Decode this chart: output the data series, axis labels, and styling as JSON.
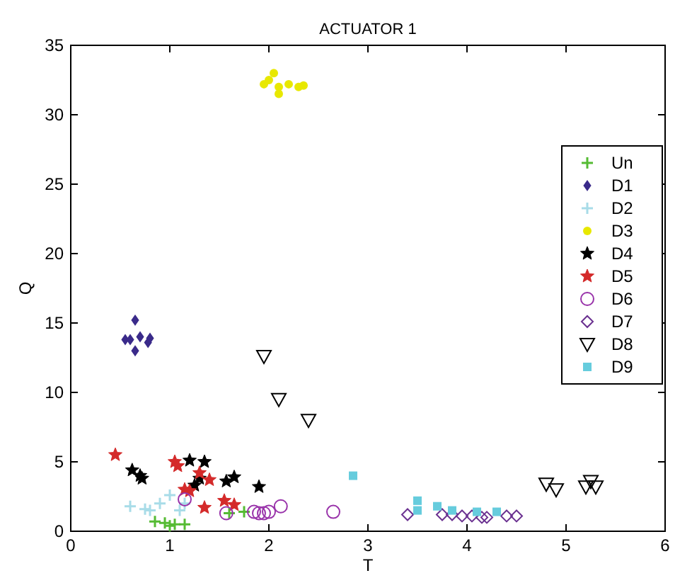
{
  "chart_data": {
    "type": "scatter",
    "title": "ACTUATOR 1",
    "xlabel": "T",
    "ylabel": "Q",
    "xlim": [
      0,
      6
    ],
    "ylim": [
      0,
      35
    ],
    "xticks": [
      0,
      1,
      2,
      3,
      4,
      5,
      6
    ],
    "yticks": [
      0,
      5,
      10,
      15,
      20,
      25,
      30,
      35
    ],
    "grid": false,
    "legend": "right",
    "series": [
      {
        "name": "Un",
        "color": "#55bb33",
        "marker": "cross",
        "x": [
          0.85,
          0.95,
          1.0,
          1.05,
          1.15,
          1.6,
          1.75
        ],
        "values": [
          0.7,
          0.6,
          0.4,
          0.5,
          0.5,
          1.3,
          1.4
        ]
      },
      {
        "name": "D1",
        "color": "#3a2a8a",
        "marker": "diamond",
        "x": [
          0.55,
          0.6,
          0.65,
          0.65,
          0.7,
          0.78,
          0.8
        ],
        "values": [
          13.8,
          13.8,
          15.2,
          13,
          14,
          13.6,
          13.9
        ]
      },
      {
        "name": "D2",
        "color": "#a8dce8",
        "marker": "cross",
        "x": [
          0.6,
          0.75,
          0.8,
          0.9,
          1.0,
          1.1,
          1.15
        ],
        "values": [
          1.8,
          1.6,
          1.5,
          2.0,
          2.6,
          1.5,
          2.0
        ]
      },
      {
        "name": "D3",
        "color": "#e8e800",
        "marker": "circle",
        "x": [
          1.95,
          2.0,
          2.05,
          2.1,
          2.1,
          2.2,
          2.3,
          2.35
        ],
        "values": [
          32.2,
          32.5,
          33,
          31.5,
          32,
          32.2,
          32,
          32.1
        ]
      },
      {
        "name": "D4",
        "color": "#000000",
        "marker": "star",
        "x": [
          0.62,
          0.7,
          0.72,
          1.2,
          1.25,
          1.3,
          1.35,
          1.57,
          1.65,
          1.9
        ],
        "values": [
          4.4,
          4.0,
          3.8,
          5.1,
          3.3,
          3.8,
          5.0,
          3.6,
          3.9,
          3.2
        ]
      },
      {
        "name": "D5",
        "color": "#d42a2a",
        "marker": "star",
        "x": [
          0.45,
          1.05,
          1.08,
          1.15,
          1.2,
          1.3,
          1.35,
          1.4,
          1.55,
          1.65
        ],
        "values": [
          5.5,
          5.0,
          4.7,
          3.0,
          2.9,
          4.2,
          1.7,
          3.7,
          2.2,
          1.9
        ]
      },
      {
        "name": "D6",
        "color": "#9933aa",
        "marker": "circle_open",
        "x": [
          1.15,
          1.57,
          1.85,
          1.9,
          1.95,
          2.0,
          2.12,
          2.65
        ],
        "values": [
          2.3,
          1.3,
          1.4,
          1.3,
          1.3,
          1.4,
          1.8,
          1.4
        ]
      },
      {
        "name": "D7",
        "color": "#6a3090",
        "marker": "diamond_open",
        "x": [
          3.4,
          3.75,
          3.85,
          3.95,
          4.05,
          4.15,
          4.2,
          4.4,
          4.5
        ],
        "values": [
          1.2,
          1.2,
          1.2,
          1.1,
          1.1,
          1.0,
          1.0,
          1.1,
          1.1
        ]
      },
      {
        "name": "D8",
        "color": "#000000",
        "marker": "triangle",
        "x": [
          1.95,
          2.1,
          2.4,
          4.8,
          4.9,
          5.2,
          5.25,
          5.3
        ],
        "values": [
          12.6,
          9.5,
          8,
          3.4,
          3,
          3.2,
          3.6,
          3.2
        ]
      },
      {
        "name": "D9",
        "color": "#66ccdd",
        "marker": "square",
        "x": [
          2.85,
          3.5,
          3.5,
          3.7,
          3.85,
          4.1,
          4.3
        ],
        "values": [
          4.0,
          2.2,
          1.5,
          1.8,
          1.5,
          1.4,
          1.4
        ]
      }
    ]
  }
}
